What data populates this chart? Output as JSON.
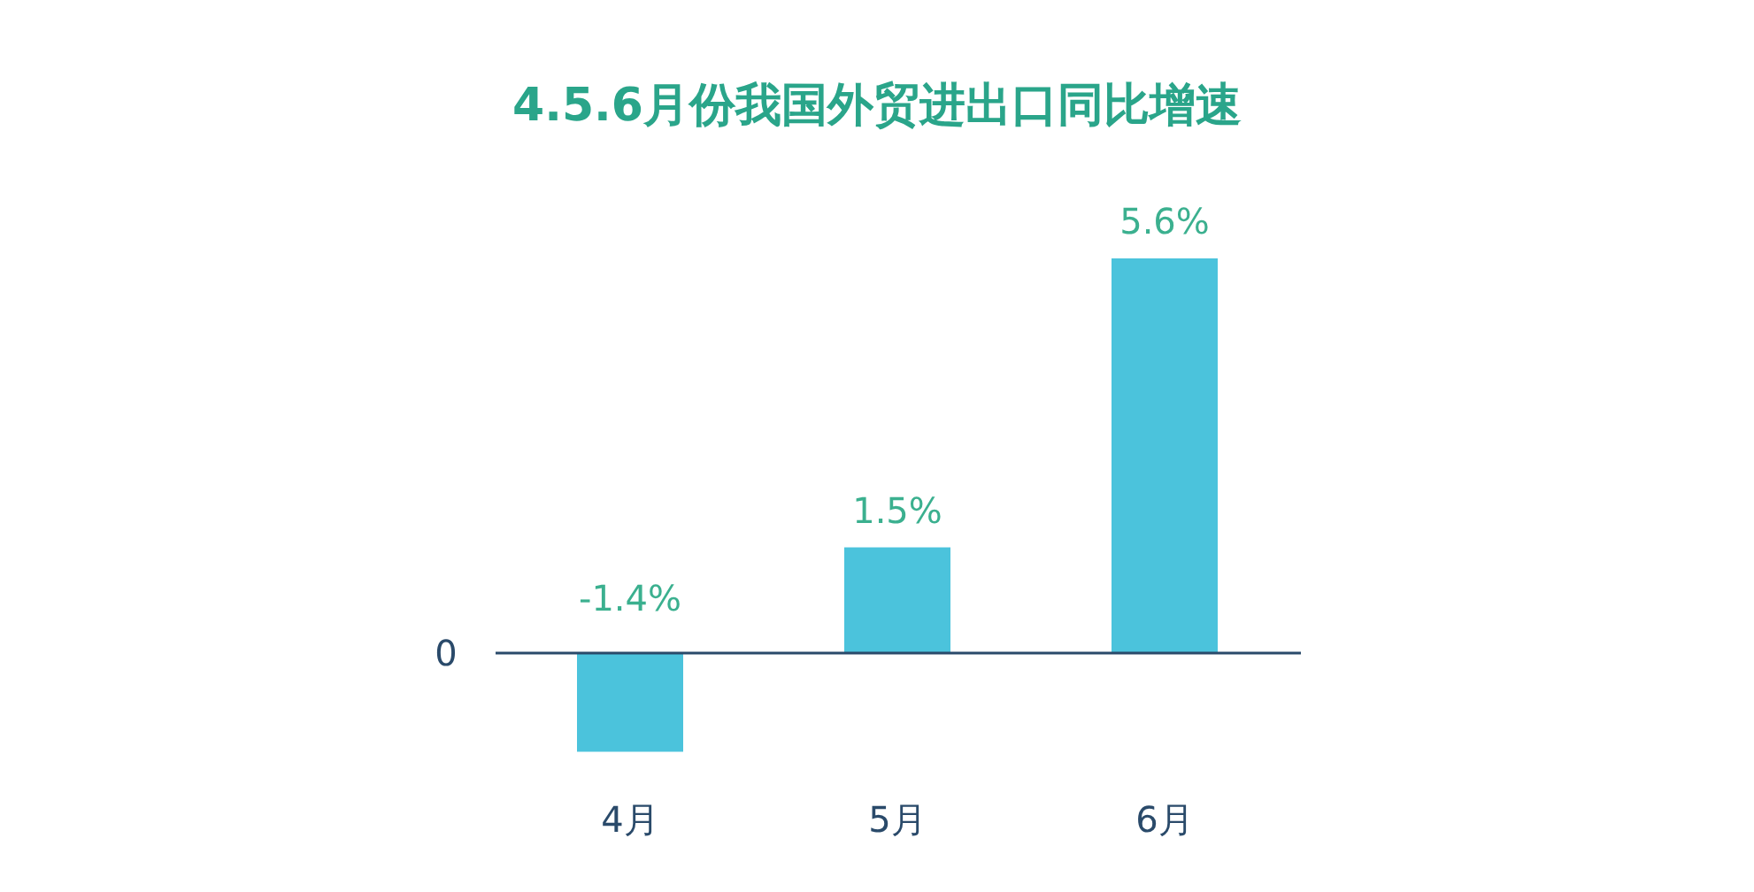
{
  "chart_data": {
    "type": "bar",
    "title": "4.5.6月份我国外贸进出口同比增速",
    "categories": [
      "4月",
      "5月",
      "6月"
    ],
    "values": [
      -1.4,
      1.5,
      5.6
    ],
    "value_labels": [
      "-1.4%",
      "1.5%",
      "5.6%"
    ],
    "color": "#4bc3dc",
    "ref_lines": [
      {
        "axis": "y",
        "value": 0,
        "label": "0",
        "color": "#2a4a6a"
      }
    ]
  }
}
